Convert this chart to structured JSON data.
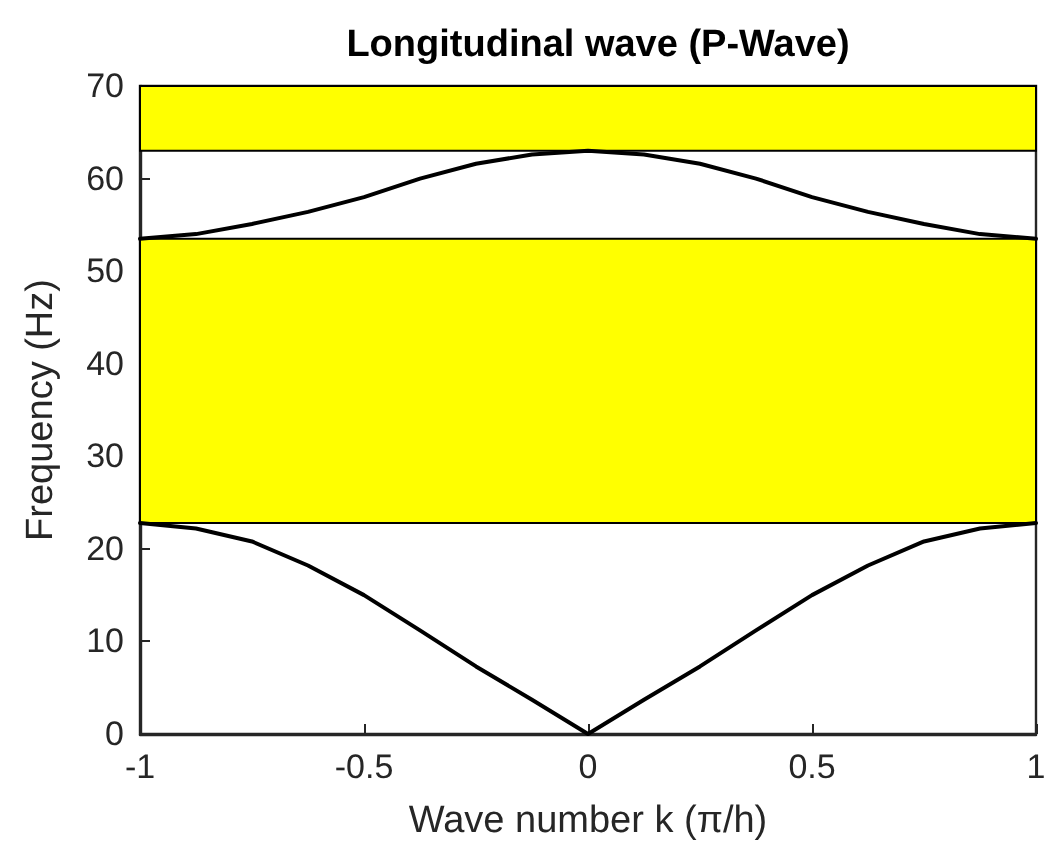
{
  "chart_data": {
    "type": "line",
    "title": "Longitudinal wave (P-Wave)",
    "xlabel": "Wave number k (π/h)",
    "ylabel": "Frequency (Hz)",
    "series": [
      {
        "color": "#000000",
        "x": [
          -1,
          -0.875,
          -0.75,
          -0.625,
          -0.5,
          -0.375,
          -0.25,
          -0.125,
          0,
          0.125,
          0.25,
          0.375,
          0.5,
          0.625,
          0.75,
          0.875,
          1
        ],
        "values": [
          22.8,
          22.2,
          20.8,
          18.2,
          15.0,
          11.2,
          7.3,
          3.7,
          0,
          3.7,
          7.3,
          11.2,
          15.0,
          18.2,
          20.8,
          22.2,
          22.8
        ]
      },
      {
        "color": "#000000",
        "x": [
          -1,
          -0.875,
          -0.75,
          -0.625,
          -0.5,
          -0.375,
          -0.25,
          -0.125,
          0,
          0.125,
          0.25,
          0.375,
          0.5,
          0.625,
          0.75,
          0.875,
          1
        ],
        "values": [
          53.5,
          54.0,
          55.1,
          56.4,
          58.0,
          60.0,
          61.6,
          62.6,
          63.0,
          62.6,
          61.6,
          60.0,
          58.0,
          56.4,
          55.1,
          54.0,
          53.5
        ]
      }
    ],
    "bands": [
      {
        "axis": "y",
        "from": 22.8,
        "to": 53.5,
        "color": "#ffff00"
      },
      {
        "axis": "y",
        "from": 63.0,
        "to": 70,
        "color": "#ffff00"
      }
    ],
    "xlim": [
      -1,
      1
    ],
    "xticks": [
      -1,
      -0.5,
      0,
      0.5,
      1
    ],
    "ylim": [
      0,
      70
    ],
    "yticks": [
      0,
      10,
      20,
      30,
      40,
      50,
      60,
      70
    ],
    "grid": false,
    "marker": "none",
    "line_style": "solid"
  }
}
